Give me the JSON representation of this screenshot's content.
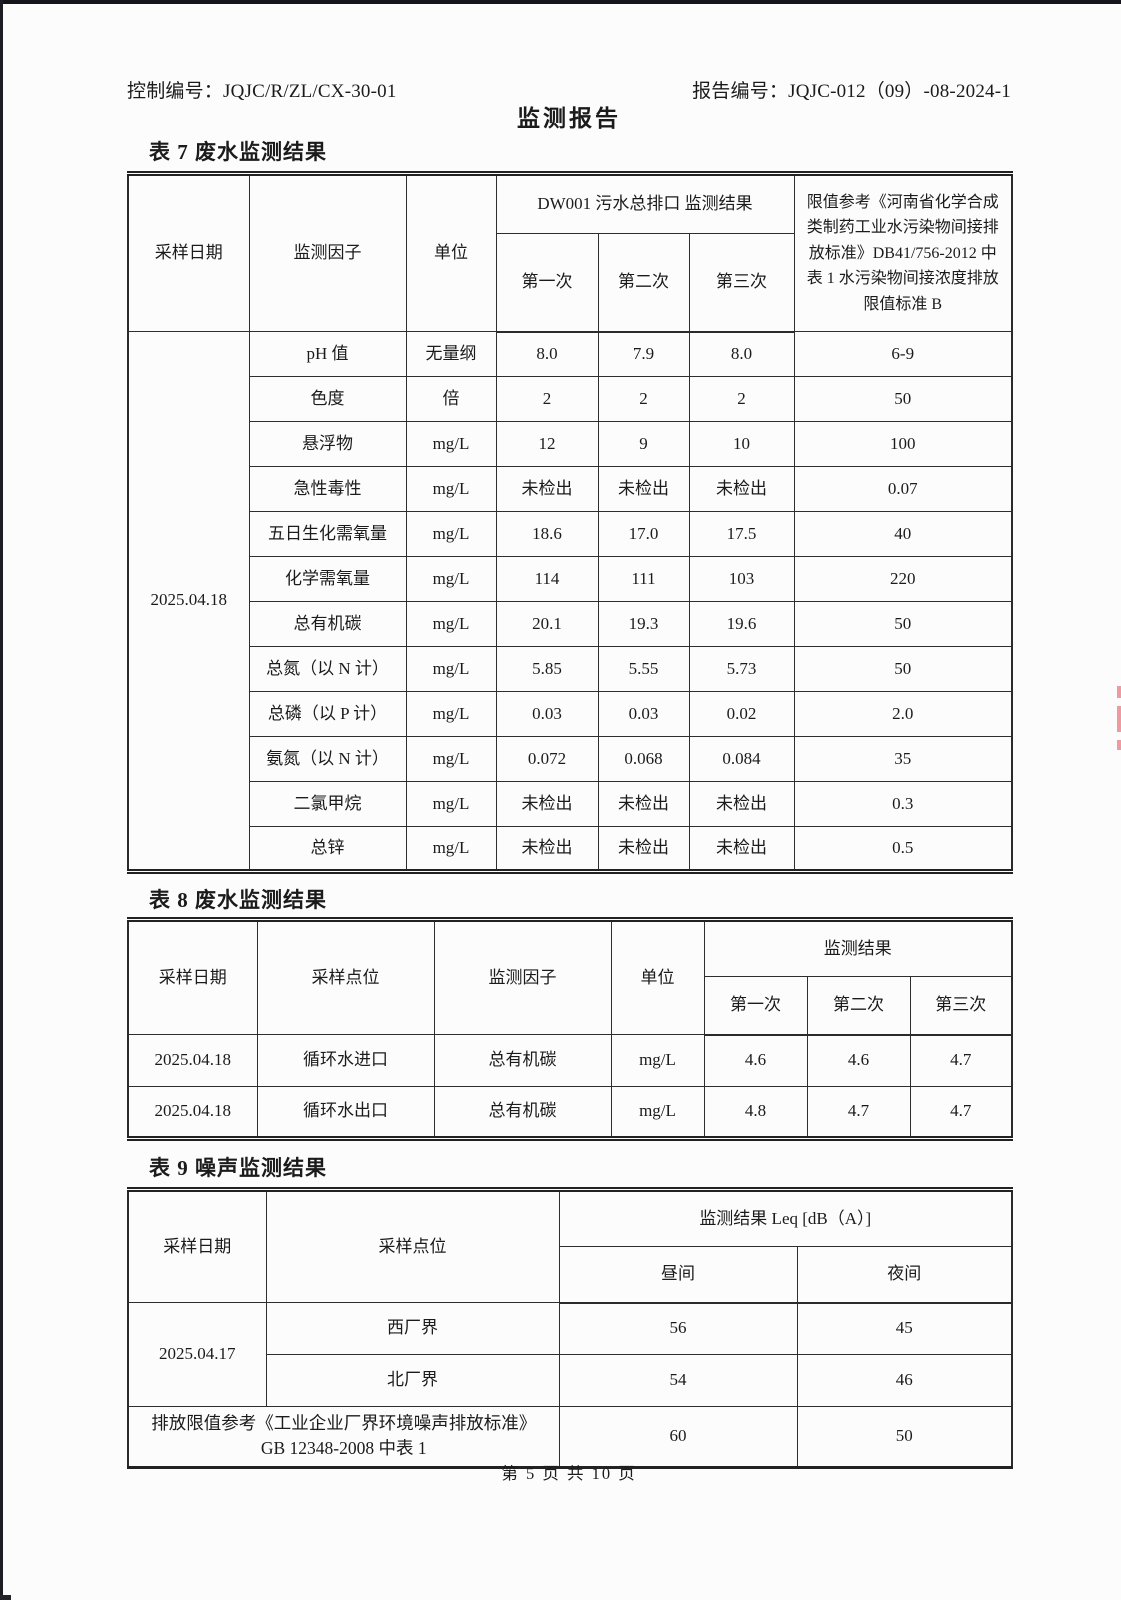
{
  "page": {
    "control_no": "控制编号：JQJC/R/ZL/CX-30-01",
    "report_no": "报告编号：JQJC-012（09）-08-2024-1",
    "title": "监测报告",
    "footer": "第 5 页 共 10 页"
  },
  "table7": {
    "caption": "表 7 废水监测结果",
    "col_sample_date": "采样日期",
    "col_factor": "监测因子",
    "col_unit": "单位",
    "col_result_group": "DW001 污水总排口 监测结果",
    "col_first": "第一次",
    "col_second": "第二次",
    "col_third": "第三次",
    "col_limit": "限值参考《河南省化学合成类制药工业水污染物间接排放标准》DB41/756-2012 中表 1 水污染物间接浓度排放限值标准 B",
    "sample_date": "2025.04.18",
    "rows": [
      [
        "pH 值",
        "无量纲",
        "8.0",
        "7.9",
        "8.0",
        "6-9"
      ],
      [
        "色度",
        "倍",
        "2",
        "2",
        "2",
        "50"
      ],
      [
        "悬浮物",
        "mg/L",
        "12",
        "9",
        "10",
        "100"
      ],
      [
        "急性毒性",
        "mg/L",
        "未检出",
        "未检出",
        "未检出",
        "0.07"
      ],
      [
        "五日生化需氧量",
        "mg/L",
        "18.6",
        "17.0",
        "17.5",
        "40"
      ],
      [
        "化学需氧量",
        "mg/L",
        "114",
        "111",
        "103",
        "220"
      ],
      [
        "总有机碳",
        "mg/L",
        "20.1",
        "19.3",
        "19.6",
        "50"
      ],
      [
        "总氮（以 N 计）",
        "mg/L",
        "5.85",
        "5.55",
        "5.73",
        "50"
      ],
      [
        "总磷（以 P 计）",
        "mg/L",
        "0.03",
        "0.03",
        "0.02",
        "2.0"
      ],
      [
        "氨氮（以 N 计）",
        "mg/L",
        "0.072",
        "0.068",
        "0.084",
        "35"
      ],
      [
        "二氯甲烷",
        "mg/L",
        "未检出",
        "未检出",
        "未检出",
        "0.3"
      ],
      [
        "总锌",
        "mg/L",
        "未检出",
        "未检出",
        "未检出",
        "0.5"
      ]
    ]
  },
  "table8": {
    "caption": "表 8 废水监测结果",
    "col_sample_date": "采样日期",
    "col_point": "采样点位",
    "col_factor": "监测因子",
    "col_unit": "单位",
    "col_result_group": "监测结果",
    "col_first": "第一次",
    "col_second": "第二次",
    "col_third": "第三次",
    "rows": [
      [
        "2025.04.18",
        "循环水进口",
        "总有机碳",
        "mg/L",
        "4.6",
        "4.6",
        "4.7"
      ],
      [
        "2025.04.18",
        "循环水出口",
        "总有机碳",
        "mg/L",
        "4.8",
        "4.7",
        "4.7"
      ]
    ]
  },
  "table9": {
    "caption": "表 9 噪声监测结果",
    "col_sample_date": "采样日期",
    "col_point": "采样点位",
    "col_result_group": "监测结果 Leq [dB（A）]",
    "col_day": "昼间",
    "col_night": "夜间",
    "sample_date": "2025.04.17",
    "rows": [
      [
        "西厂界",
        "56",
        "45"
      ],
      [
        "北厂界",
        "54",
        "46"
      ]
    ],
    "limit_row": {
      "label": "排放限值参考《工业企业厂界环境噪声排放标准》 GB 12348-2008 中表 1",
      "day": "60",
      "night": "50"
    }
  }
}
